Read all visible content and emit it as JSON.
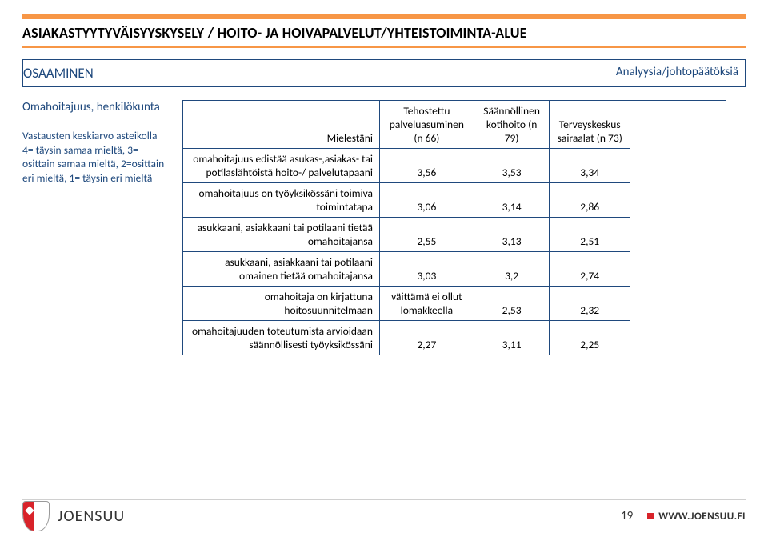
{
  "colors": {
    "accent_orange": "#f79646",
    "text_blue": "#1f497d",
    "border_blue": "#1f497d",
    "brand_red": "#d8232a",
    "body_text": "#000000",
    "background": "#ffffff"
  },
  "header": {
    "title": "ASIAKASTYYTYVÄISYYSKYSELY / HOITO- JA HOIVAPALVELUT/YHTEISTOIMINTA-ALUE"
  },
  "section": {
    "title": "OSAAMINEN",
    "right": "Analyysia/johtopäätöksiä"
  },
  "leftcol": {
    "block1": "Omahoitajuus, henkilökunta",
    "block2": "Vastausten keskiarvo asteikolla 4= täysin samaa mieltä, 3= osittain samaa mieltä, 2=osittain eri mieltä, 1= täysin eri mieltä"
  },
  "table": {
    "columns": [
      "Mielestäni",
      "Tehostettu palveluasuminen (n 66)",
      "Säännöllinen kotihoito (n 79)",
      "Terveyskeskus sairaalat (n 73)"
    ],
    "col_widths_pct": [
      44,
      19,
      19,
      18
    ],
    "rows": [
      {
        "label": "omahoitajuus edistää asukas-,asiakas- tai potilaslähtöistä hoito-/ palvelutapaani",
        "cells": [
          "3,56",
          "3,53",
          "3,34"
        ]
      },
      {
        "label": "omahoitajuus on työyksikössäni toimiva toimintatapa",
        "cells": [
          "3,06",
          "3,14",
          "2,86"
        ]
      },
      {
        "label": "asukkaani, asiakkaani tai potilaani tietää omahoitajansa",
        "cells": [
          "2,55",
          "3,13",
          "2,51"
        ]
      },
      {
        "label": "asukkaani, asiakkaani tai potilaani omainen tietää omahoitajansa",
        "cells": [
          "3,03",
          "3,2",
          "2,74"
        ]
      },
      {
        "label": "omahoitaja on kirjattuna hoitosuunnitelmaan",
        "cells": [
          "väittämä ei ollut lomakkeella",
          "2,53",
          "2,32"
        ]
      },
      {
        "label": "omahoitajuuden toteutumista arvioidaan säännöllisesti työyksikössäni",
        "cells": [
          "2,27",
          "3,11",
          "2,25"
        ]
      }
    ]
  },
  "footer": {
    "brand": "JOENSUU",
    "page_number": "19",
    "url": "WWW.JOENSUU.FI"
  }
}
